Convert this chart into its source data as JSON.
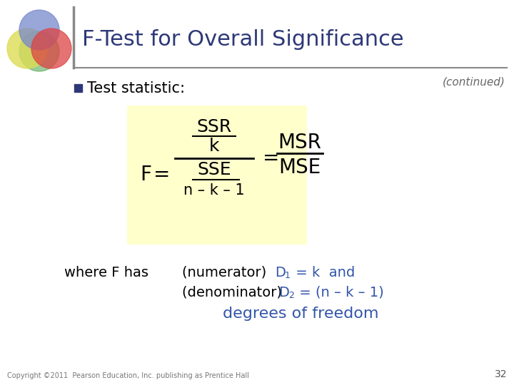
{
  "title": "F-Test for Overall Significance",
  "continued_text": "(continued)",
  "bullet_text": "Test statistic:",
  "formula_box_color": "#FFFFCC",
  "copyright": "Copyright ©2011  Pearson Education, Inc. publishing as Prentice Hall",
  "page_num": "32",
  "title_color": "#2E3878",
  "continued_color": "#666666",
  "bullet_color": "#2E3878",
  "formula_text_color": "#000000",
  "highlight_color": "#3355AA",
  "degrees_color": "#3355AA",
  "background_color": "#FFFFFF",
  "separator_color": "#888888",
  "venn_blue": "#7788CC",
  "venn_yellow": "#DDDD55",
  "venn_red": "#DD4444",
  "venn_green": "#55AA55"
}
